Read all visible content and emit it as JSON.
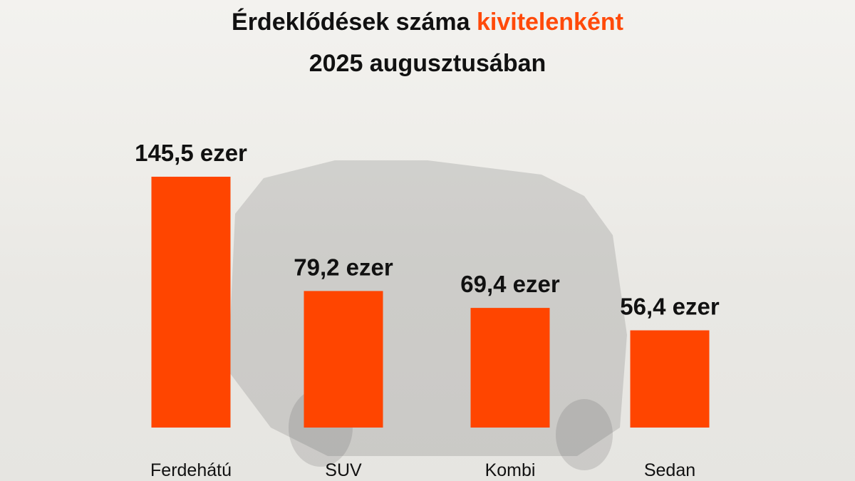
{
  "colors": {
    "bar": "#FF4500",
    "title_accent": "#FF4A0A",
    "text": "#111111"
  },
  "title": {
    "part1": "Érdeklődések száma ",
    "accent": "kivitelenként",
    "line2": "2025 augusztusában"
  },
  "chart_data": {
    "type": "bar",
    "categories": [
      "Ferdehátú",
      "SUV",
      "Kombi",
      "Sedan"
    ],
    "values": [
      145.5,
      79.2,
      69.4,
      56.4
    ],
    "data_labels": [
      "145,5 ezer",
      "79,2 ezer",
      "69,4 ezer",
      "56,4 ezer"
    ],
    "ylim": [
      0,
      145.5
    ],
    "grid": false,
    "legend": "none"
  }
}
